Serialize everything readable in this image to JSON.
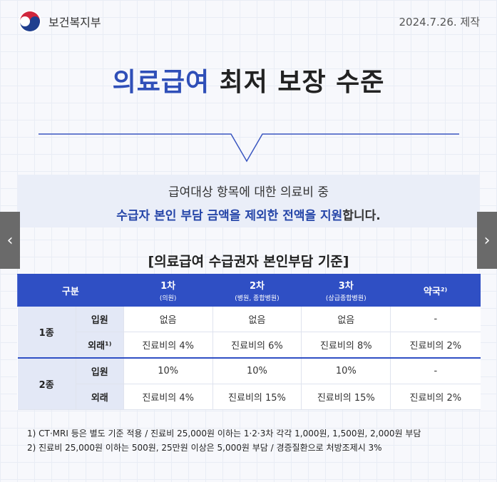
{
  "header": {
    "org": "보건복지부",
    "date": "2024.7.26. 제작"
  },
  "title": {
    "highlight": "의료급여",
    "rest": " 최저 보장 수준"
  },
  "intro": {
    "line1": "급여대상 항목에 대한 의료비 중",
    "line2_em": "수급자 본인 부담 금액을 제외한 전액을 지원",
    "line2_rest": "합니다."
  },
  "table_title": "[의료급여 수급권자 본인부담 기준]",
  "table": {
    "headers": [
      {
        "label": "구분",
        "sub": ""
      },
      {
        "label": "1차",
        "sub": "(의원)"
      },
      {
        "label": "2차",
        "sub": "(병원, 종합병원)"
      },
      {
        "label": "3차",
        "sub": "(상급종합병원)"
      },
      {
        "label": "약국²⁾",
        "sub": ""
      }
    ],
    "groups": [
      {
        "name": "1종",
        "rows": [
          {
            "type": "입원",
            "values": [
              "없음",
              "없음",
              "없음",
              "-"
            ]
          },
          {
            "type": "외래¹⁾",
            "values": [
              "진료비의 4%",
              "진료비의 6%",
              "진료비의 8%",
              "진료비의 2%"
            ]
          }
        ]
      },
      {
        "name": "2종",
        "rows": [
          {
            "type": "입원",
            "values": [
              "10%",
              "10%",
              "10%",
              "-"
            ]
          },
          {
            "type": "외래",
            "values": [
              "진료비의 4%",
              "진료비의 15%",
              "진료비의 15%",
              "진료비의 2%"
            ]
          }
        ]
      }
    ]
  },
  "notes": [
    "1) CT·MRI 등은 별도 기준 적용 / 진료비 25,000원 이하는 1·2·3차 각각 1,000원, 1,500원, 2,000원 부담",
    "2) 진료비 25,000원 이하는 500원, 25만원 이상은 5,000원 부담 / 경증질환으로 처방조제시 3%"
  ],
  "nav": {
    "prev": "‹",
    "next": "›"
  },
  "colors": {
    "accent": "#2f4fc4",
    "title_highlight": "#2f4fb8"
  }
}
